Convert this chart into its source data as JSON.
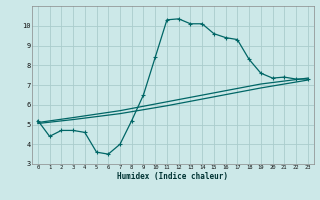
{
  "background_color": "#cce8e8",
  "grid_color": "#aacccc",
  "line_color": "#006666",
  "xlim": [
    -0.5,
    23.5
  ],
  "ylim": [
    3,
    11
  ],
  "xlabel": "Humidex (Indice chaleur)",
  "xticks": [
    0,
    1,
    2,
    3,
    4,
    5,
    6,
    7,
    8,
    9,
    10,
    11,
    12,
    13,
    14,
    15,
    16,
    17,
    18,
    19,
    20,
    21,
    22,
    23
  ],
  "yticks": [
    3,
    4,
    5,
    6,
    7,
    8,
    9,
    10
  ],
  "line1": {
    "x": [
      0,
      1,
      2,
      3,
      4,
      5,
      6,
      7,
      8,
      9,
      10,
      11,
      12,
      13,
      14,
      15,
      16,
      17,
      18,
      19,
      20,
      21,
      22,
      23
    ],
    "y": [
      5.2,
      4.4,
      4.7,
      4.7,
      4.6,
      3.6,
      3.5,
      4.0,
      5.2,
      6.5,
      8.4,
      10.3,
      10.35,
      10.1,
      10.1,
      9.6,
      9.4,
      9.3,
      8.3,
      7.6,
      7.35,
      7.4,
      7.3,
      7.3
    ]
  },
  "line2": {
    "x": [
      0,
      3,
      7,
      11,
      15,
      19,
      23
    ],
    "y": [
      5.1,
      5.35,
      5.7,
      6.15,
      6.6,
      7.05,
      7.35
    ]
  },
  "line3": {
    "x": [
      0,
      3,
      7,
      11,
      15,
      19,
      23
    ],
    "y": [
      5.05,
      5.25,
      5.55,
      5.95,
      6.4,
      6.85,
      7.25
    ]
  }
}
